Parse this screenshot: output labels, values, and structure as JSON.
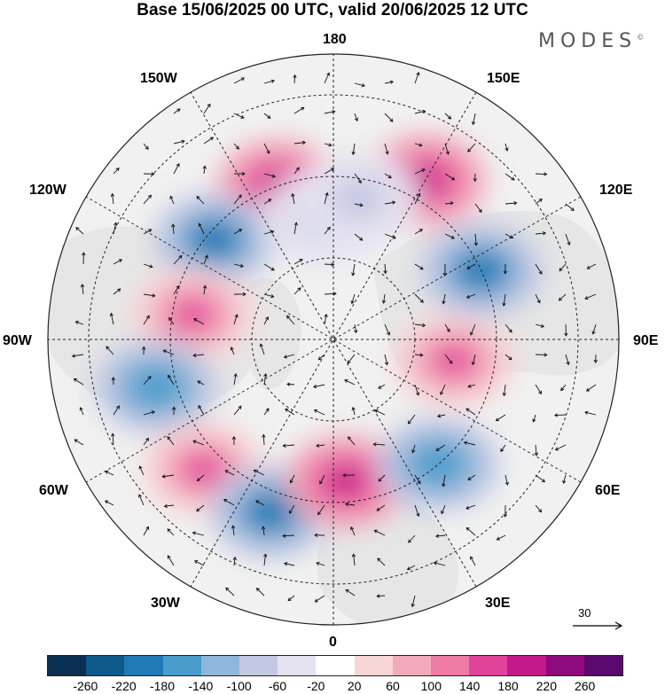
{
  "title": "Base 15/06/2025 00 UTC, valid 20/06/2025 12 UTC",
  "brand": "MODES",
  "brand_mark": "©",
  "longitude_labels": {
    "top": "180",
    "top_left": "150W",
    "top_right": "150E",
    "upper_left": "120W",
    "upper_right": "120E",
    "left": "90W",
    "right": "90E",
    "lower_left": "60W",
    "lower_right": "60E",
    "bottom_left": "30W",
    "bottom_right": "30E",
    "bottom": "0"
  },
  "reference_vector": "30",
  "colorbar": {
    "colors": [
      "#0a2f52",
      "#0d5a8c",
      "#1e7bb5",
      "#4a9ccc",
      "#8fb6dc",
      "#c3c8e2",
      "#e4e2f0",
      "#ffffff",
      "#f8d6d6",
      "#f3aabb",
      "#ee7aa6",
      "#e0439a",
      "#c4198a",
      "#8f0a7c",
      "#5a0a6e"
    ],
    "tick_labels": [
      "-260",
      "-220",
      "-180",
      "-140",
      "-100",
      "-60",
      "-20",
      "20",
      "60",
      "100",
      "140",
      "180",
      "220",
      "260"
    ]
  },
  "map": {
    "projection": "north-polar-stereographic",
    "field": "anomaly (shaded) with wind vectors",
    "land_color": "#e6e6e6",
    "anomaly_centers": [
      {
        "lon": -160,
        "lat": 50,
        "value": 180
      },
      {
        "lon": -130,
        "lat": 52,
        "value": -220
      },
      {
        "lon": -100,
        "lat": 55,
        "value": 140
      },
      {
        "lon": -75,
        "lat": 45,
        "value": -180
      },
      {
        "lon": -45,
        "lat": 45,
        "value": 160
      },
      {
        "lon": -20,
        "lat": 45,
        "value": -220
      },
      {
        "lon": 5,
        "lat": 55,
        "value": 200
      },
      {
        "lon": 40,
        "lat": 50,
        "value": -180
      },
      {
        "lon": 80,
        "lat": 60,
        "value": 140
      },
      {
        "lon": 115,
        "lat": 50,
        "value": -220
      },
      {
        "lon": 150,
        "lat": 45,
        "value": 200
      },
      {
        "lon": -175,
        "lat": 60,
        "value": -100
      },
      {
        "lon": 170,
        "lat": 55,
        "value": -100
      }
    ]
  }
}
